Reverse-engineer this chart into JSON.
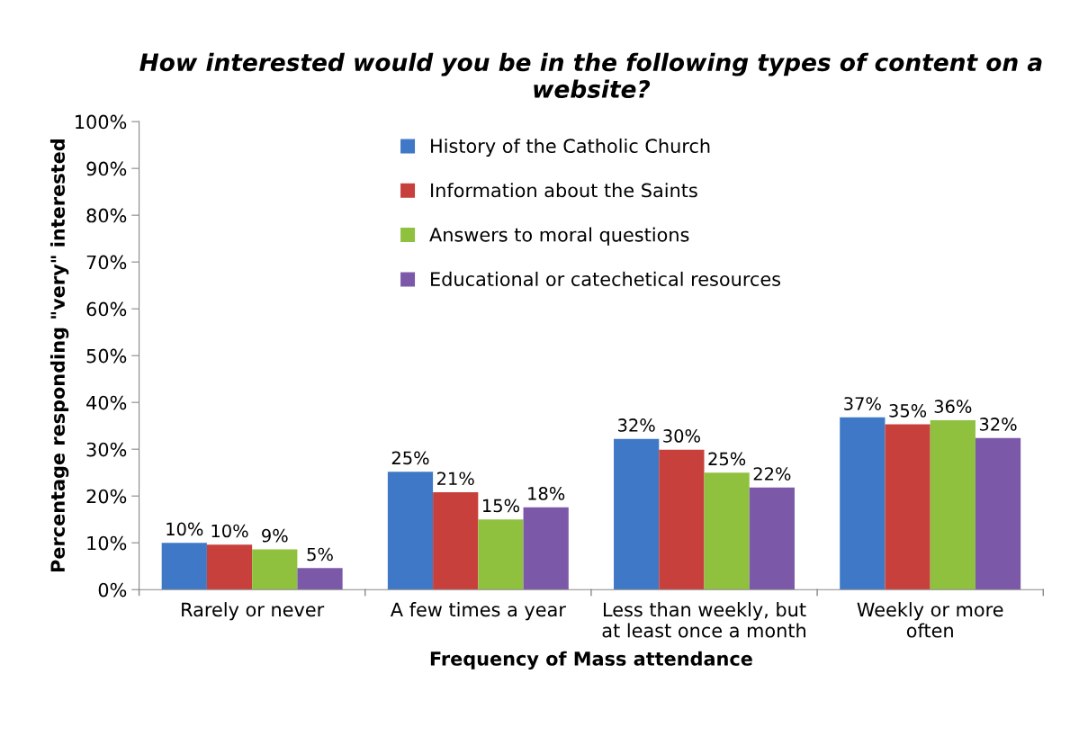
{
  "chart_data": {
    "type": "bar",
    "title": "How interested would you be in the following types of content on a website?",
    "xlabel": "Frequency of Mass attendance",
    "ylabel": "Percentage responding \"very\" interested",
    "categories": [
      "Rarely or never",
      "A few times a year",
      "Less than weekly, but\nat least once a month",
      "Weekly or more\noften"
    ],
    "series": [
      {
        "name": "History of the Catholic Church",
        "color": "#3f78c6",
        "values": [
          10.0,
          25.2,
          32.2,
          36.8
        ],
        "value_labels": [
          "10%",
          "25%",
          "32%",
          "37%"
        ]
      },
      {
        "name": "Information about the Saints",
        "color": "#c8403c",
        "values": [
          9.6,
          20.8,
          29.9,
          35.3
        ],
        "value_labels": [
          "10%",
          "21%",
          "30%",
          "35%"
        ]
      },
      {
        "name": "Answers to moral questions",
        "color": "#8fc13f",
        "values": [
          8.6,
          15.0,
          25.0,
          36.2
        ],
        "value_labels": [
          "9%",
          "15%",
          "25%",
          "36%"
        ]
      },
      {
        "name": "Educational or catechetical resources",
        "color": "#7c59a8",
        "values": [
          4.6,
          17.6,
          21.8,
          32.4
        ],
        "value_labels": [
          "5%",
          "18%",
          "22%",
          "32%"
        ]
      }
    ],
    "ylim": [
      0,
      100
    ],
    "yticks": [
      {
        "value": 0,
        "label": "0%"
      },
      {
        "value": 10,
        "label": "10%"
      },
      {
        "value": 20,
        "label": "20%"
      },
      {
        "value": 30,
        "label": "30%"
      },
      {
        "value": 40,
        "label": "40%"
      },
      {
        "value": 50,
        "label": "50%"
      },
      {
        "value": 60,
        "label": "60%"
      },
      {
        "value": 70,
        "label": "70%"
      },
      {
        "value": 80,
        "label": "80%"
      },
      {
        "value": 90,
        "label": "90%"
      },
      {
        "value": 100,
        "label": "100%"
      }
    ],
    "legend": "top",
    "grid": false
  }
}
